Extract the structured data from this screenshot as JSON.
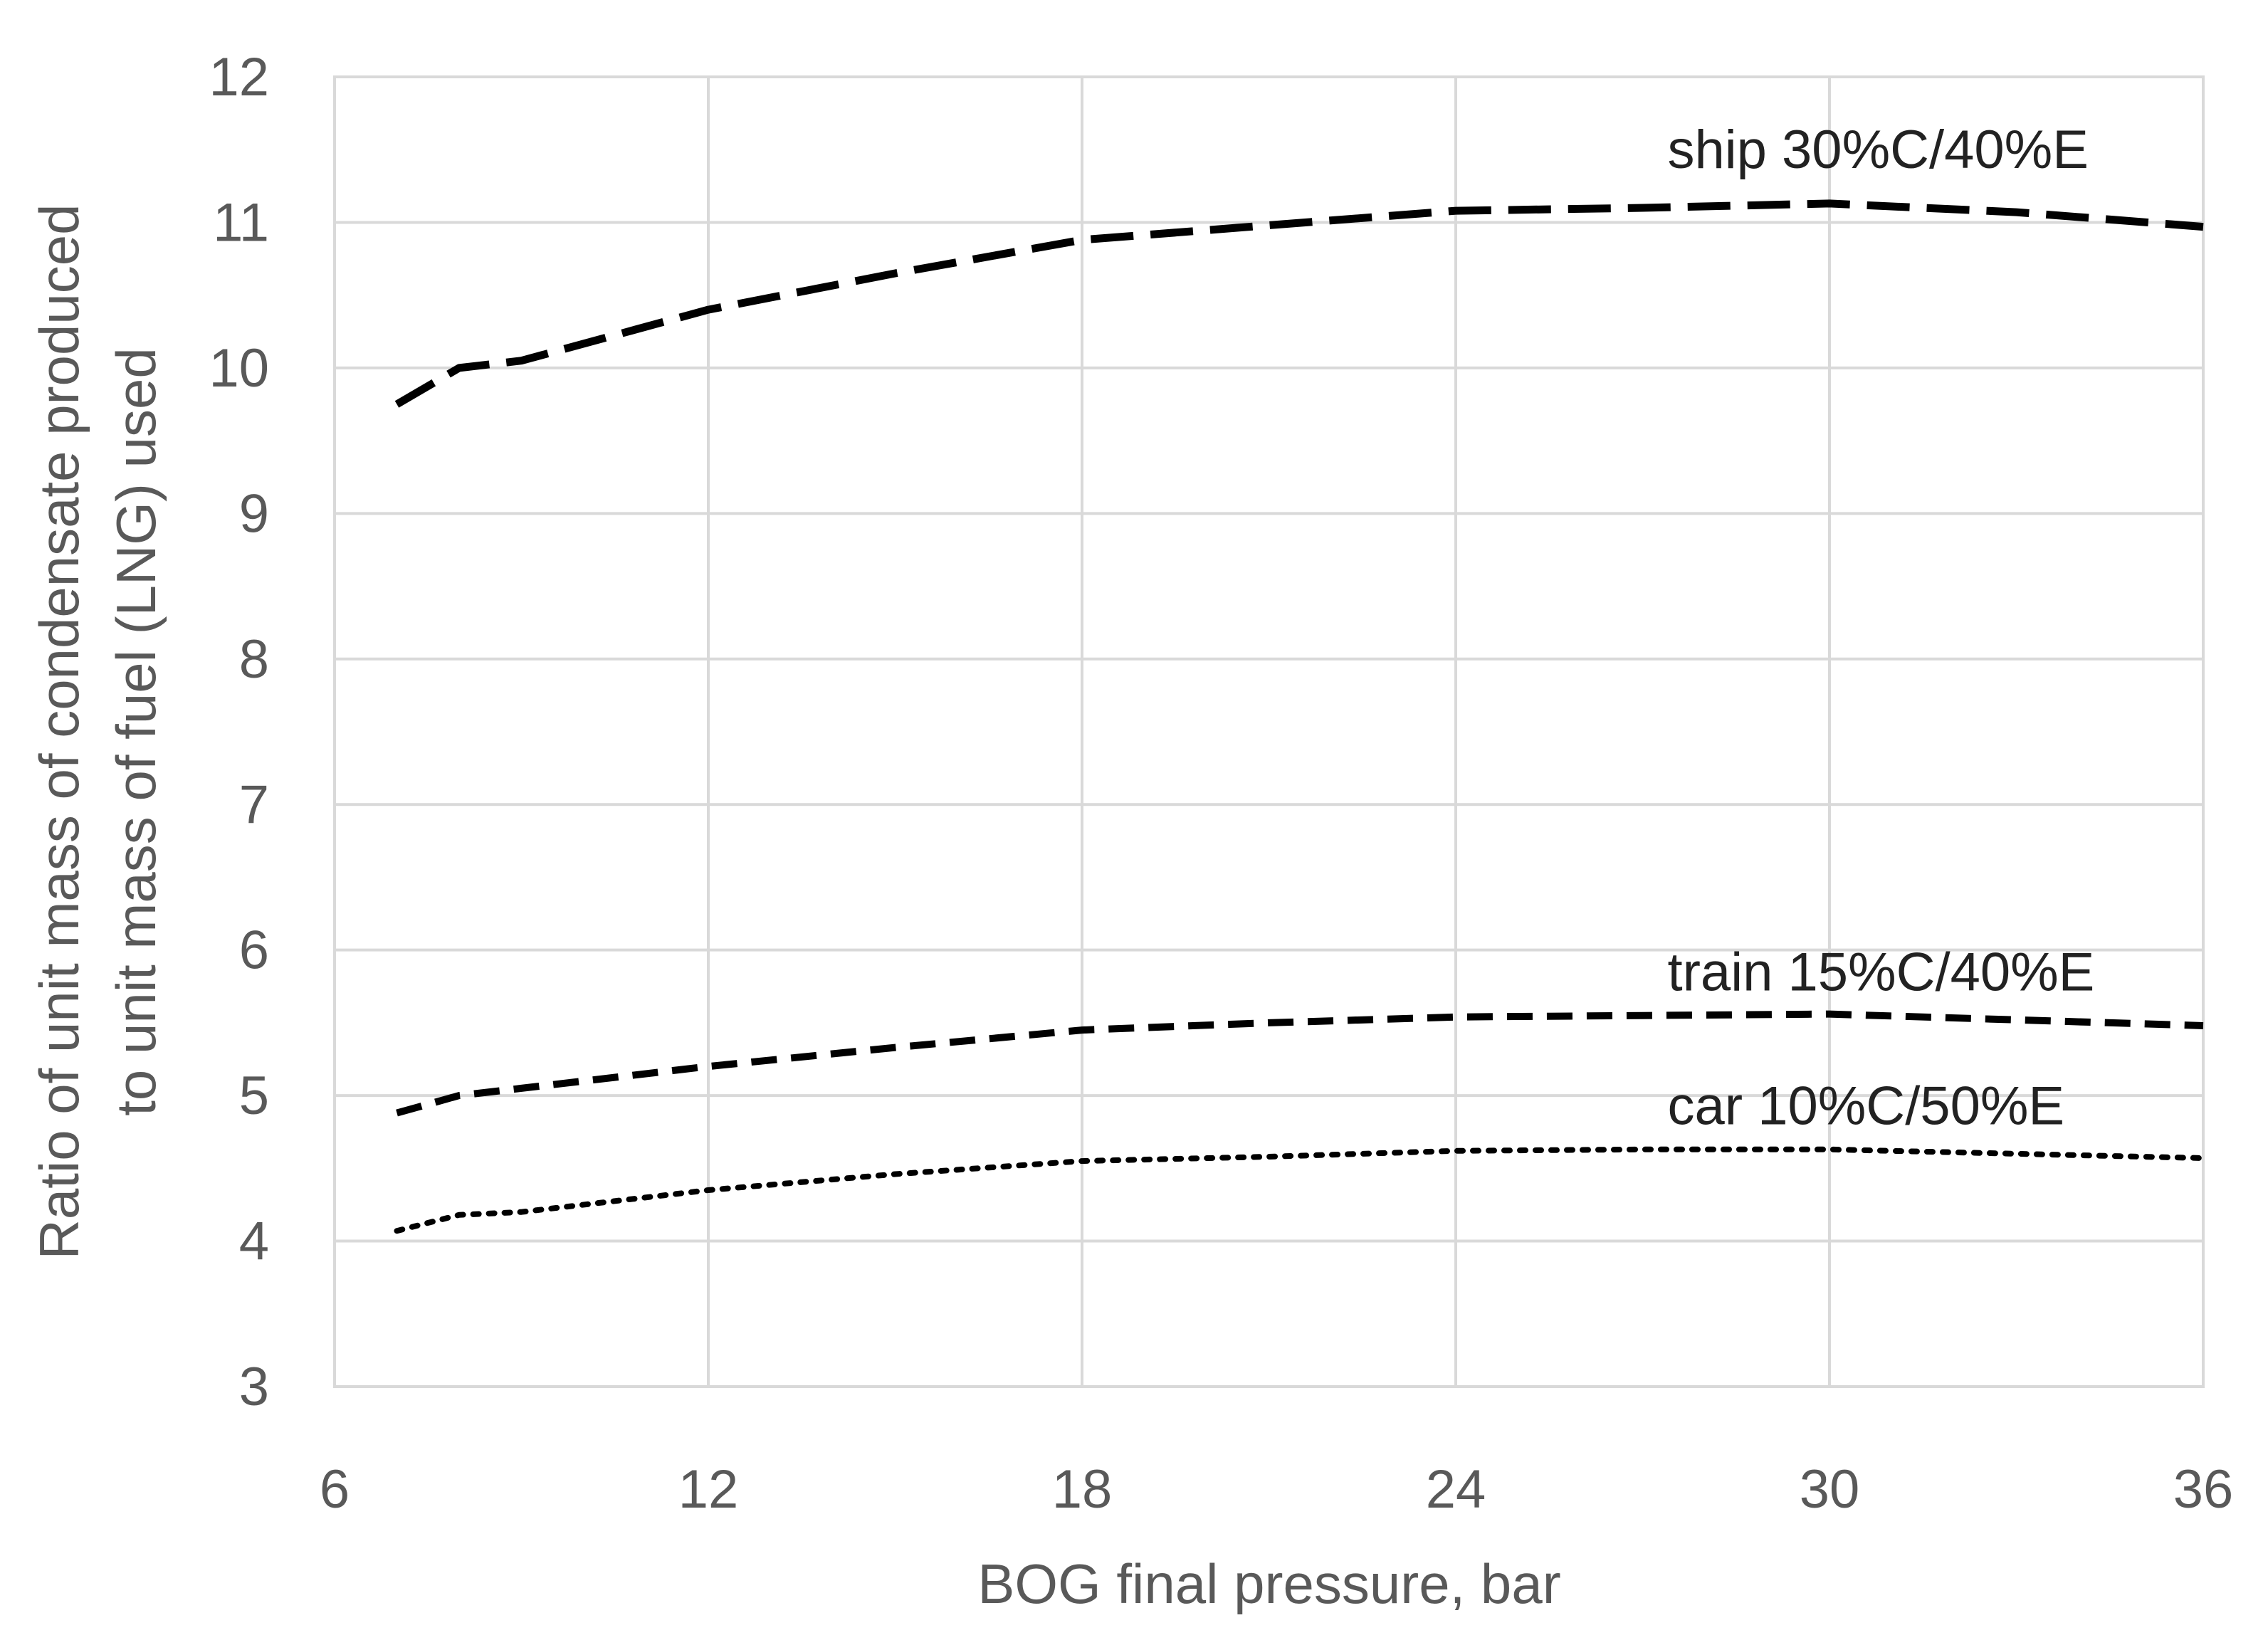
{
  "chart_data": {
    "type": "line",
    "title": "",
    "xlabel": "BOG final pressure, bar",
    "ylabel_lines": [
      "Ratio of unit mass of condensate produced",
      "to unit mass of fuel (LNG) used"
    ],
    "xlim": [
      6,
      36
    ],
    "ylim": [
      3,
      12
    ],
    "xticks": [
      6,
      12,
      18,
      24,
      30,
      36
    ],
    "yticks": [
      3,
      4,
      5,
      6,
      7,
      8,
      9,
      10,
      11,
      12
    ],
    "grid": true,
    "legend": "inline labels",
    "x": [
      7,
      8,
      9,
      12,
      15,
      18,
      21,
      24,
      27,
      30,
      33,
      36
    ],
    "series": [
      {
        "name": "ship 30%C/40%E",
        "style": "long-dash",
        "color": "#000000",
        "values": [
          9.75,
          10.0,
          10.05,
          10.4,
          10.65,
          10.88,
          10.98,
          11.08,
          11.1,
          11.13,
          11.07,
          10.97
        ]
      },
      {
        "name": "train 15%C/40%E",
        "style": "dash",
        "color": "#000000",
        "values": [
          4.88,
          5.0,
          5.05,
          5.2,
          5.33,
          5.45,
          5.5,
          5.54,
          5.55,
          5.56,
          5.52,
          5.48
        ]
      },
      {
        "name": "car 10%C/50%E",
        "style": "dot",
        "color": "#000000",
        "values": [
          4.07,
          4.18,
          4.2,
          4.35,
          4.46,
          4.55,
          4.58,
          4.62,
          4.63,
          4.63,
          4.6,
          4.57
        ]
      }
    ]
  }
}
